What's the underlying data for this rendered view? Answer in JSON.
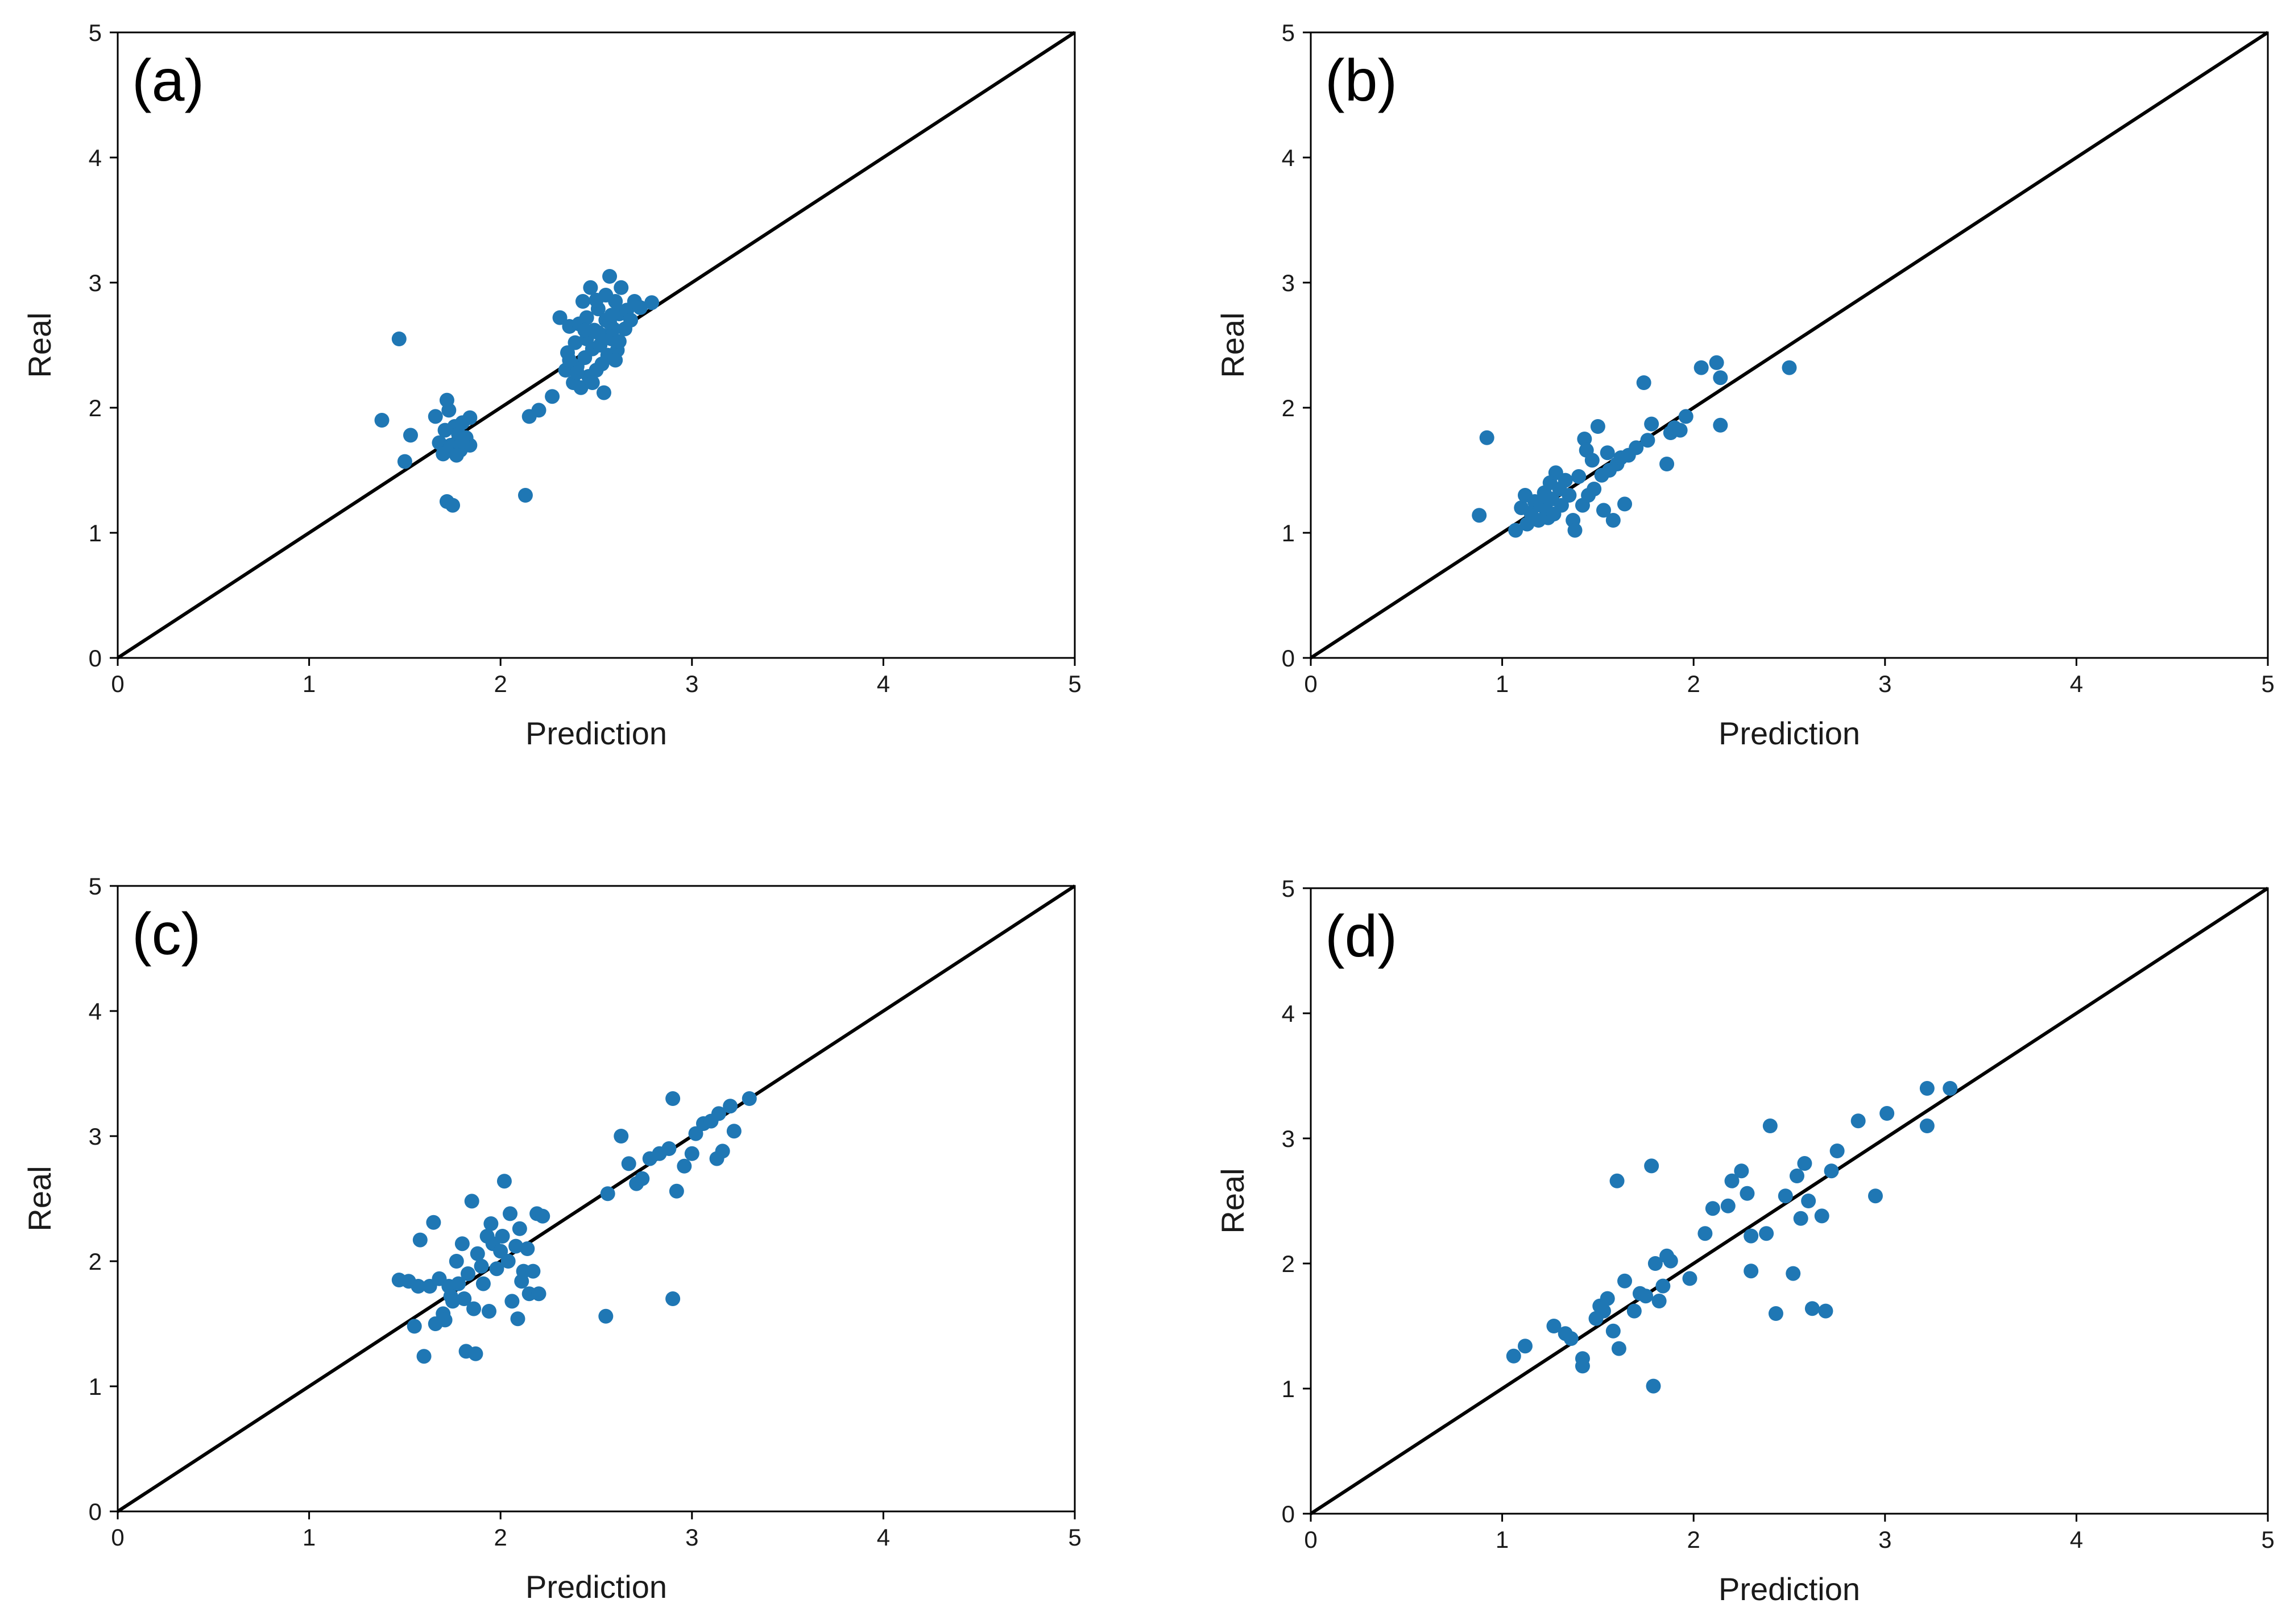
{
  "figure": {
    "marker_color": "#1f77b4",
    "line_color": "#000000",
    "axes_color": "#000000"
  },
  "chart_data": [
    {
      "type": "scatter",
      "panel": "(a)",
      "xlabel": "Prediction",
      "ylabel": "Real",
      "xlim": [
        0,
        5
      ],
      "ylim": [
        0,
        5
      ],
      "xticks": [
        "0",
        "1",
        "2",
        "3",
        "4",
        "5"
      ],
      "yticks": [
        "0",
        "1",
        "2",
        "3",
        "4",
        "5"
      ],
      "reference_line": {
        "x": [
          0,
          5
        ],
        "y": [
          0,
          5
        ]
      },
      "points": [
        [
          1.38,
          1.9
        ],
        [
          1.47,
          2.55
        ],
        [
          1.5,
          1.57
        ],
        [
          1.53,
          1.78
        ],
        [
          1.66,
          1.93
        ],
        [
          1.68,
          1.72
        ],
        [
          1.7,
          1.63
        ],
        [
          1.72,
          2.06
        ],
        [
          1.72,
          1.25
        ],
        [
          1.75,
          1.22
        ],
        [
          1.73,
          1.98
        ],
        [
          1.74,
          1.7
        ],
        [
          1.76,
          1.85
        ],
        [
          1.78,
          1.79
        ],
        [
          1.79,
          1.66
        ],
        [
          1.8,
          1.88
        ],
        [
          1.82,
          1.76
        ],
        [
          1.84,
          1.7
        ],
        [
          1.84,
          1.92
        ],
        [
          1.71,
          1.82
        ],
        [
          1.77,
          1.62
        ],
        [
          1.8,
          1.73
        ],
        [
          2.13,
          1.3
        ],
        [
          2.15,
          1.93
        ],
        [
          2.2,
          1.98
        ],
        [
          2.27,
          2.09
        ],
        [
          2.31,
          2.72
        ],
        [
          2.34,
          2.3
        ],
        [
          2.35,
          2.44
        ],
        [
          2.36,
          2.65
        ],
        [
          2.38,
          2.2
        ],
        [
          2.39,
          2.52
        ],
        [
          2.4,
          2.33
        ],
        [
          2.41,
          2.67
        ],
        [
          2.42,
          2.16
        ],
        [
          2.43,
          2.85
        ],
        [
          2.44,
          2.4
        ],
        [
          2.45,
          2.55
        ],
        [
          2.46,
          2.25
        ],
        [
          2.47,
          2.96
        ],
        [
          2.48,
          2.47
        ],
        [
          2.49,
          2.62
        ],
        [
          2.5,
          2.3
        ],
        [
          2.51,
          2.79
        ],
        [
          2.52,
          2.5
        ],
        [
          2.53,
          2.58
        ],
        [
          2.54,
          2.12
        ],
        [
          2.55,
          2.7
        ],
        [
          2.56,
          2.42
        ],
        [
          2.57,
          3.05
        ],
        [
          2.58,
          2.55
        ],
        [
          2.59,
          2.63
        ],
        [
          2.6,
          2.85
        ],
        [
          2.61,
          2.46
        ],
        [
          2.62,
          2.75
        ],
        [
          2.63,
          2.96
        ],
        [
          2.65,
          2.63
        ],
        [
          2.66,
          2.78
        ],
        [
          2.68,
          2.7
        ],
        [
          2.7,
          2.85
        ],
        [
          2.73,
          2.8
        ],
        [
          2.79,
          2.84
        ],
        [
          2.45,
          2.72
        ],
        [
          2.5,
          2.86
        ],
        [
          2.53,
          2.35
        ],
        [
          2.57,
          2.68
        ],
        [
          2.6,
          2.38
        ],
        [
          2.48,
          2.2
        ],
        [
          2.4,
          2.28
        ],
        [
          2.55,
          2.9
        ],
        [
          2.62,
          2.53
        ],
        [
          2.44,
          2.62
        ],
        [
          2.36,
          2.38
        ],
        [
          2.58,
          2.74
        ],
        [
          2.51,
          2.6
        ]
      ]
    },
    {
      "type": "scatter",
      "panel": "(b)",
      "xlabel": "Prediction",
      "ylabel": "Real",
      "xlim": [
        0,
        5
      ],
      "ylim": [
        0,
        5
      ],
      "xticks": [
        "0",
        "1",
        "2",
        "3",
        "4",
        "5"
      ],
      "yticks": [
        "0",
        "1",
        "2",
        "3",
        "4",
        "5"
      ],
      "reference_line": {
        "x": [
          0,
          5
        ],
        "y": [
          0,
          5
        ]
      },
      "points": [
        [
          0.88,
          1.14
        ],
        [
          0.92,
          1.76
        ],
        [
          1.07,
          1.02
        ],
        [
          1.1,
          1.2
        ],
        [
          1.12,
          1.3
        ],
        [
          1.13,
          1.07
        ],
        [
          1.15,
          1.16
        ],
        [
          1.17,
          1.25
        ],
        [
          1.19,
          1.1
        ],
        [
          1.2,
          1.22
        ],
        [
          1.22,
          1.32
        ],
        [
          1.23,
          1.18
        ],
        [
          1.24,
          1.12
        ],
        [
          1.25,
          1.4
        ],
        [
          1.26,
          1.27
        ],
        [
          1.27,
          1.15
        ],
        [
          1.28,
          1.48
        ],
        [
          1.3,
          1.35
        ],
        [
          1.31,
          1.22
        ],
        [
          1.33,
          1.42
        ],
        [
          1.35,
          1.3
        ],
        [
          1.37,
          1.1
        ],
        [
          1.38,
          1.02
        ],
        [
          1.4,
          1.45
        ],
        [
          1.42,
          1.22
        ],
        [
          1.43,
          1.75
        ],
        [
          1.44,
          1.66
        ],
        [
          1.45,
          1.3
        ],
        [
          1.47,
          1.58
        ],
        [
          1.48,
          1.35
        ],
        [
          1.5,
          1.85
        ],
        [
          1.52,
          1.46
        ],
        [
          1.53,
          1.18
        ],
        [
          1.55,
          1.64
        ],
        [
          1.56,
          1.5
        ],
        [
          1.58,
          1.1
        ],
        [
          1.6,
          1.55
        ],
        [
          1.62,
          1.6
        ],
        [
          1.64,
          1.23
        ],
        [
          1.66,
          1.62
        ],
        [
          1.7,
          1.68
        ],
        [
          1.74,
          2.2
        ],
        [
          1.76,
          1.74
        ],
        [
          1.78,
          1.87
        ],
        [
          1.86,
          1.55
        ],
        [
          1.88,
          1.8
        ],
        [
          1.9,
          1.84
        ],
        [
          1.93,
          1.82
        ],
        [
          1.96,
          1.93
        ],
        [
          2.04,
          2.32
        ],
        [
          2.12,
          2.36
        ],
        [
          2.14,
          1.86
        ],
        [
          2.14,
          2.24
        ],
        [
          2.5,
          2.32
        ]
      ]
    },
    {
      "type": "scatter",
      "panel": "(c)",
      "xlabel": "Prediction",
      "ylabel": "Real",
      "xlim": [
        0,
        5
      ],
      "ylim": [
        0,
        5
      ],
      "xticks": [
        "0",
        "1",
        "2",
        "3",
        "4",
        "5"
      ],
      "yticks": [
        "0",
        "1",
        "2",
        "3",
        "4",
        "5"
      ],
      "reference_line": {
        "x": [
          0,
          5
        ],
        "y": [
          0,
          5
        ]
      },
      "points": [
        [
          1.47,
          1.85
        ],
        [
          1.52,
          1.84
        ],
        [
          1.55,
          1.48
        ],
        [
          1.57,
          1.8
        ],
        [
          1.58,
          2.17
        ],
        [
          1.6,
          1.24
        ],
        [
          1.63,
          1.8
        ],
        [
          1.65,
          2.31
        ],
        [
          1.66,
          1.5
        ],
        [
          1.68,
          1.86
        ],
        [
          1.7,
          1.58
        ],
        [
          1.71,
          1.53
        ],
        [
          1.73,
          1.8
        ],
        [
          1.74,
          1.72
        ],
        [
          1.75,
          1.68
        ],
        [
          1.77,
          2.0
        ],
        [
          1.78,
          1.82
        ],
        [
          1.8,
          2.14
        ],
        [
          1.81,
          1.7
        ],
        [
          1.82,
          1.28
        ],
        [
          1.83,
          1.9
        ],
        [
          1.85,
          2.48
        ],
        [
          1.86,
          1.62
        ],
        [
          1.87,
          1.26
        ],
        [
          1.88,
          2.06
        ],
        [
          1.9,
          1.96
        ],
        [
          1.91,
          1.82
        ],
        [
          1.93,
          2.2
        ],
        [
          1.94,
          1.6
        ],
        [
          1.95,
          2.3
        ],
        [
          1.96,
          2.14
        ],
        [
          1.98,
          1.94
        ],
        [
          2.0,
          2.08
        ],
        [
          2.01,
          2.2
        ],
        [
          2.02,
          2.64
        ],
        [
          2.04,
          2.0
        ],
        [
          2.05,
          2.38
        ],
        [
          2.06,
          1.68
        ],
        [
          2.08,
          2.12
        ],
        [
          2.09,
          1.54
        ],
        [
          2.1,
          2.26
        ],
        [
          2.11,
          1.84
        ],
        [
          2.12,
          1.92
        ],
        [
          2.14,
          2.1
        ],
        [
          2.15,
          1.74
        ],
        [
          2.17,
          1.92
        ],
        [
          2.19,
          2.38
        ],
        [
          2.2,
          1.74
        ],
        [
          2.22,
          2.36
        ],
        [
          2.55,
          1.56
        ],
        [
          2.56,
          2.54
        ],
        [
          2.63,
          3.0
        ],
        [
          2.67,
          2.78
        ],
        [
          2.71,
          2.62
        ],
        [
          2.74,
          2.66
        ],
        [
          2.78,
          2.82
        ],
        [
          2.83,
          2.86
        ],
        [
          2.88,
          2.9
        ],
        [
          2.9,
          3.3
        ],
        [
          2.9,
          1.7
        ],
        [
          2.92,
          2.56
        ],
        [
          2.96,
          2.76
        ],
        [
          3.0,
          2.86
        ],
        [
          3.02,
          3.02
        ],
        [
          3.06,
          3.1
        ],
        [
          3.1,
          3.12
        ],
        [
          3.13,
          2.82
        ],
        [
          3.14,
          3.18
        ],
        [
          3.16,
          2.88
        ],
        [
          3.2,
          3.24
        ],
        [
          3.22,
          3.04
        ],
        [
          3.3,
          3.3
        ]
      ]
    },
    {
      "type": "scatter",
      "panel": "(d)",
      "xlabel": "Prediction",
      "ylabel": "Real",
      "xlim": [
        0,
        5
      ],
      "ylim": [
        0,
        5
      ],
      "xticks": [
        "0",
        "1",
        "2",
        "3",
        "4",
        "5"
      ],
      "yticks": [
        "0",
        "1",
        "2",
        "3",
        "4",
        "5"
      ],
      "reference_line": {
        "x": [
          0,
          5
        ],
        "y": [
          0,
          5
        ]
      },
      "points": [
        [
          1.06,
          1.26
        ],
        [
          1.12,
          1.34
        ],
        [
          1.27,
          1.5
        ],
        [
          1.33,
          1.44
        ],
        [
          1.36,
          1.4
        ],
        [
          1.42,
          1.24
        ],
        [
          1.42,
          1.18
        ],
        [
          1.49,
          1.56
        ],
        [
          1.51,
          1.66
        ],
        [
          1.53,
          1.62
        ],
        [
          1.55,
          1.72
        ],
        [
          1.58,
          1.46
        ],
        [
          1.6,
          2.66
        ],
        [
          1.61,
          1.32
        ],
        [
          1.64,
          1.86
        ],
        [
          1.69,
          1.62
        ],
        [
          1.72,
          1.76
        ],
        [
          1.75,
          1.74
        ],
        [
          1.78,
          2.78
        ],
        [
          1.79,
          1.02
        ],
        [
          1.8,
          2.0
        ],
        [
          1.82,
          1.7
        ],
        [
          1.84,
          1.82
        ],
        [
          1.86,
          2.06
        ],
        [
          1.88,
          2.02
        ],
        [
          1.98,
          1.88
        ],
        [
          2.06,
          2.24
        ],
        [
          2.1,
          2.44
        ],
        [
          2.18,
          2.46
        ],
        [
          2.2,
          2.66
        ],
        [
          2.25,
          2.74
        ],
        [
          2.28,
          2.56
        ],
        [
          2.3,
          2.22
        ],
        [
          2.3,
          1.94
        ],
        [
          2.38,
          2.24
        ],
        [
          2.4,
          3.1
        ],
        [
          2.43,
          1.6
        ],
        [
          2.48,
          2.54
        ],
        [
          2.52,
          1.92
        ],
        [
          2.54,
          2.7
        ],
        [
          2.56,
          2.36
        ],
        [
          2.58,
          2.8
        ],
        [
          2.6,
          2.5
        ],
        [
          2.62,
          1.64
        ],
        [
          2.67,
          2.38
        ],
        [
          2.69,
          1.62
        ],
        [
          2.72,
          2.74
        ],
        [
          2.75,
          2.9
        ],
        [
          2.86,
          3.14
        ],
        [
          2.95,
          2.54
        ],
        [
          3.01,
          3.2
        ],
        [
          3.22,
          3.4
        ],
        [
          3.22,
          3.1
        ],
        [
          3.34,
          3.4
        ]
      ]
    }
  ]
}
